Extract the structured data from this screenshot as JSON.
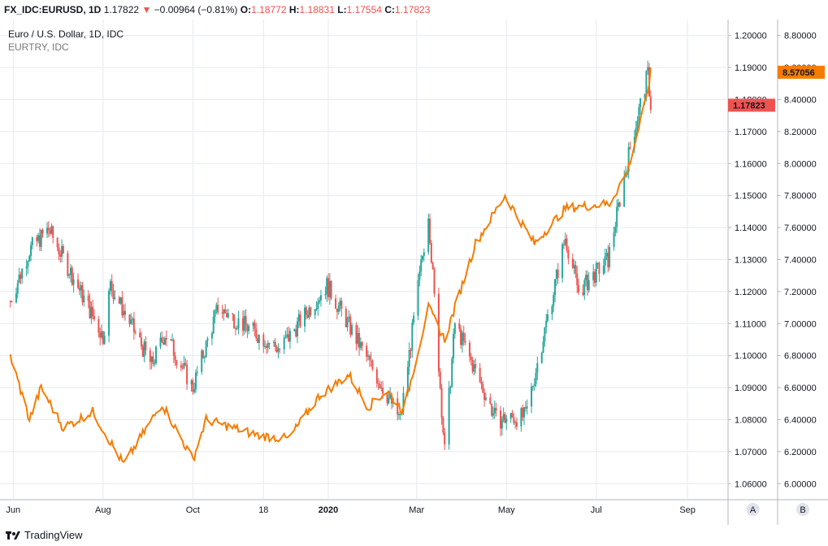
{
  "header": {
    "symbol": "FX_IDC:EURUSD, 1D",
    "last": "1.17822",
    "change_arrow": "▼",
    "change": "−0.00964 (−0.81%)",
    "o_label": "O:",
    "o": "1.18772",
    "h_label": "H:",
    "h": "1.18831",
    "l_label": "L:",
    "l": "1.17554",
    "c_label": "C:",
    "c": "1.17823"
  },
  "legend": {
    "line1": "Euro / U.S. Dollar, 1D, IDC",
    "line2": "EURTRY, IDC"
  },
  "footer": {
    "brand": "TradingView",
    "icon": "tradingview-logo-icon"
  },
  "colors": {
    "up": "#26a69a",
    "down": "#ef5350",
    "overlay": "#f57c00",
    "grid": "#e6e9ef",
    "bg": "#ffffff"
  },
  "chart_data": {
    "type": "candlestick",
    "x_tick_labels": [
      "Jun",
      "Aug",
      "Oct",
      "18",
      "2020",
      "Mar",
      "May",
      "Jul",
      "Sep"
    ],
    "series": [
      {
        "name": "Euro / U.S. Dollar, 1D, IDC",
        "type": "candlestick",
        "axis": "left-scale",
        "last_value_label": "1.17823",
        "key_points": [
          {
            "x": "2019-05-30",
            "close": 1.117
          },
          {
            "x": "2019-06-12",
            "close": 1.133
          },
          {
            "x": "2019-06-25",
            "close": 1.1395
          },
          {
            "x": "2019-07-10",
            "close": 1.126
          },
          {
            "x": "2019-08-01",
            "close": 1.106
          },
          {
            "x": "2019-08-06",
            "close": 1.122
          },
          {
            "x": "2019-09-03",
            "close": 1.097
          },
          {
            "x": "2019-09-12",
            "close": 1.107
          },
          {
            "x": "2019-10-01",
            "close": 1.09
          },
          {
            "x": "2019-10-18",
            "close": 1.115
          },
          {
            "x": "2019-11-29",
            "close": 1.102
          },
          {
            "x": "2019-12-31",
            "close": 1.122
          },
          {
            "x": "2020-02-19",
            "close": 1.08
          },
          {
            "x": "2020-03-09",
            "close": 1.145
          },
          {
            "x": "2020-03-20",
            "close": 1.07
          },
          {
            "x": "2020-03-27",
            "close": 1.11
          },
          {
            "x": "2020-04-24",
            "close": 1.08
          },
          {
            "x": "2020-05-14",
            "close": 1.081
          },
          {
            "x": "2020-06-10",
            "close": 1.137
          },
          {
            "x": "2020-06-19",
            "close": 1.12
          },
          {
            "x": "2020-07-09",
            "close": 1.13
          },
          {
            "x": "2020-07-24",
            "close": 1.165
          },
          {
            "x": "2020-08-05",
            "close": 1.188
          },
          {
            "x": "2020-08-07",
            "close": 1.1782
          }
        ]
      },
      {
        "name": "EURTRY, IDC",
        "type": "line",
        "axis": "right-scale",
        "color": "#f57c00",
        "last_value_label": "8.57056",
        "key_points": [
          {
            "x": "2019-05-30",
            "close": 6.8
          },
          {
            "x": "2019-06-12",
            "close": 6.4
          },
          {
            "x": "2019-06-20",
            "close": 6.6
          },
          {
            "x": "2019-07-05",
            "close": 6.35
          },
          {
            "x": "2019-07-25",
            "close": 6.45
          },
          {
            "x": "2019-08-15",
            "close": 6.12
          },
          {
            "x": "2019-09-10",
            "close": 6.5
          },
          {
            "x": "2019-10-01",
            "close": 6.15
          },
          {
            "x": "2019-10-10",
            "close": 6.4
          },
          {
            "x": "2019-11-15",
            "close": 6.3
          },
          {
            "x": "2019-12-05",
            "close": 6.28
          },
          {
            "x": "2019-12-26",
            "close": 6.55
          },
          {
            "x": "2020-01-15",
            "close": 6.68
          },
          {
            "x": "2020-01-28",
            "close": 6.48
          },
          {
            "x": "2020-02-10",
            "close": 6.58
          },
          {
            "x": "2020-02-21",
            "close": 6.45
          },
          {
            "x": "2020-03-09",
            "close": 7.1
          },
          {
            "x": "2020-03-20",
            "close": 6.9
          },
          {
            "x": "2020-04-10",
            "close": 7.5
          },
          {
            "x": "2020-04-30",
            "close": 7.8
          },
          {
            "x": "2020-05-20",
            "close": 7.5
          },
          {
            "x": "2020-06-10",
            "close": 7.72
          },
          {
            "x": "2020-07-10",
            "close": 7.75
          },
          {
            "x": "2020-07-22",
            "close": 7.95
          },
          {
            "x": "2020-08-04",
            "close": 8.4
          },
          {
            "x": "2020-08-07",
            "close": 8.57
          }
        ]
      }
    ],
    "left_axis": {
      "ticks": [
        "1.06000",
        "1.07000",
        "1.08000",
        "1.09000",
        "1.10000",
        "1.11000",
        "1.12000",
        "1.13000",
        "1.14000",
        "1.15000",
        "1.16000",
        "1.17000",
        "1.18000",
        "1.19000",
        "1.20000"
      ],
      "range": [
        1.055,
        1.205
      ]
    },
    "right_axis": {
      "ticks": [
        "6.00000",
        "6.20000",
        "6.40000",
        "6.60000",
        "6.80000",
        "7.00000",
        "7.20000",
        "7.40000",
        "7.60000",
        "7.80000",
        "8.00000",
        "8.20000",
        "8.40000",
        "8.60000",
        "8.80000"
      ],
      "range": [
        5.9,
        8.9
      ]
    },
    "scale_buttons": [
      "A",
      "B"
    ],
    "grid": true
  }
}
